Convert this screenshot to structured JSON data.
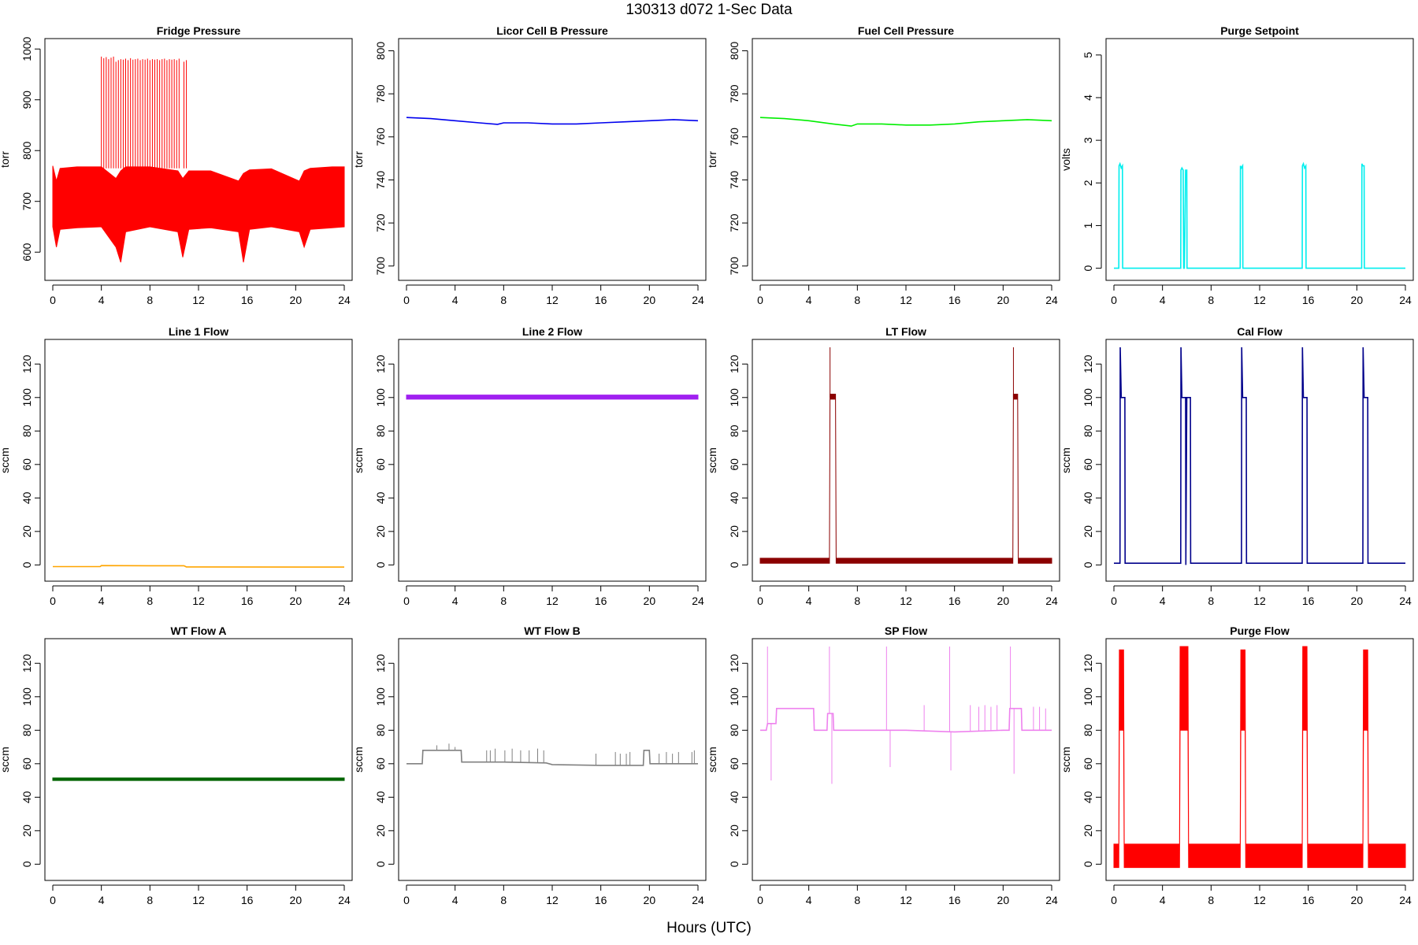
{
  "figure": {
    "title": "130313    d072    1-Sec Data",
    "xlabel": "Hours (UTC)"
  },
  "chart_data": [
    {
      "type": "line",
      "title": "Fridge Pressure",
      "ylabel": "torr",
      "color": "#ff0000",
      "xlim": [
        0,
        24
      ],
      "xticks": [
        0,
        4,
        8,
        12,
        16,
        20,
        24
      ],
      "ylim": [
        560,
        1005
      ],
      "yticks": [
        600,
        700,
        800,
        900,
        1000
      ],
      "series": [
        {
          "band": {
            "x": [
              0,
              0.3,
              0.6,
              2,
              4,
              5.2,
              5.6,
              6,
              8,
              10.3,
              10.7,
              11.2,
              13,
              15.3,
              15.7,
              16.2,
              18,
              20.3,
              20.7,
              21.2,
              23,
              24
            ],
            "low": [
              650,
              610,
              645,
              648,
              650,
              610,
              580,
              640,
              650,
              640,
              590,
              645,
              648,
              640,
              580,
              645,
              650,
              640,
              610,
              645,
              648,
              650
            ],
            "high": [
              770,
              740,
              765,
              768,
              768,
              745,
              760,
              768,
              768,
              760,
              745,
              760,
              760,
              740,
              755,
              762,
              764,
              740,
              760,
              765,
              768,
              768
            ]
          },
          "spikes": {
            "x": [
              4.0,
              4.2,
              4.4,
              4.6,
              4.8,
              5.0,
              5.2,
              5.4,
              5.6,
              5.8,
              6.0,
              6.2,
              6.4,
              6.6,
              6.8,
              7.0,
              7.2,
              7.4,
              7.6,
              7.8,
              8.0,
              8.2,
              8.4,
              8.6,
              8.8,
              9.0,
              9.2,
              9.4,
              9.6,
              9.8,
              10.0,
              10.2,
              10.4,
              10.8,
              11.0
            ],
            "top": [
              985,
              982,
              984,
              980,
              983,
              985,
              975,
              978,
              980,
              979,
              981,
              978,
              982,
              979,
              980,
              981,
              978,
              980,
              979,
              981,
              978,
              980,
              979,
              980,
              978,
              980,
              981,
              978,
              980,
              979,
              980,
              978,
              981,
              975,
              978
            ],
            "base": 765
          }
        }
      ]
    },
    {
      "type": "line",
      "title": "Licor Cell B Pressure",
      "ylabel": "torr",
      "color": "#0000ee",
      "xlim": [
        0,
        24
      ],
      "xticks": [
        0,
        4,
        8,
        12,
        16,
        20,
        24
      ],
      "ylim": [
        697,
        802
      ],
      "yticks": [
        700,
        720,
        740,
        760,
        780,
        800
      ],
      "series": [
        {
          "x": [
            0,
            2,
            4,
            6,
            7.5,
            8,
            10,
            12,
            14,
            16,
            18,
            20,
            22,
            24
          ],
          "y": [
            769,
            768.5,
            767.5,
            766.5,
            765.8,
            766.5,
            766.5,
            766,
            766,
            766.5,
            767,
            767.5,
            768,
            767.5
          ]
        }
      ]
    },
    {
      "type": "line",
      "title": "Fuel Cell Pressure",
      "ylabel": "torr",
      "color": "#00ee00",
      "xlim": [
        0,
        24
      ],
      "xticks": [
        0,
        4,
        8,
        12,
        16,
        20,
        24
      ],
      "ylim": [
        697,
        802
      ],
      "yticks": [
        700,
        720,
        740,
        760,
        780,
        800
      ],
      "series": [
        {
          "x": [
            0,
            2,
            4,
            6,
            7.5,
            8,
            10,
            12,
            14,
            16,
            18,
            20,
            22,
            24
          ],
          "y": [
            769,
            768.5,
            767.5,
            766,
            765,
            766,
            766,
            765.5,
            765.5,
            766,
            767,
            767.5,
            768,
            767.5
          ]
        }
      ]
    },
    {
      "type": "line",
      "title": "Purge Setpoint",
      "ylabel": "volts",
      "color": "#00eeee",
      "xlim": [
        0,
        24
      ],
      "xticks": [
        0,
        4,
        8,
        12,
        16,
        20,
        24
      ],
      "ylim": [
        -0.1,
        5.2
      ],
      "yticks": [
        0,
        1,
        2,
        3,
        4,
        5
      ],
      "series": [
        {
          "x": [
            0,
            0.4,
            0.42,
            0.5,
            0.6,
            0.7,
            0.72,
            5.5,
            5.52,
            5.6,
            5.7,
            5.75,
            5.8,
            5.9,
            6.0,
            6.02,
            10.4,
            10.42,
            10.5,
            10.6,
            10.62,
            15.5,
            15.52,
            15.6,
            15.7,
            15.8,
            15.82,
            20.4,
            20.42,
            20.5,
            20.6,
            20.62,
            24
          ],
          "y": [
            0,
            0,
            2.4,
            2.45,
            2.35,
            2.4,
            0,
            0,
            2.3,
            2.35,
            2.3,
            0,
            0,
            2.3,
            2.3,
            0,
            0,
            2.4,
            2.35,
            2.4,
            0,
            0,
            2.4,
            2.45,
            2.35,
            2.4,
            0,
            0,
            2.45,
            2.4,
            2.4,
            0,
            0
          ]
        }
      ]
    },
    {
      "type": "line",
      "title": "Line 1 Flow",
      "ylabel": "sccm",
      "color": "#ffa500",
      "xlim": [
        0,
        24
      ],
      "xticks": [
        0,
        4,
        8,
        12,
        16,
        20,
        24
      ],
      "ylim": [
        -5,
        130
      ],
      "yticks": [
        0,
        20,
        40,
        60,
        80,
        100,
        120
      ],
      "series": [
        {
          "x": [
            0,
            3.9,
            4.0,
            8,
            10.8,
            11.0,
            24
          ],
          "y": [
            -1,
            -1,
            -0.4,
            -0.5,
            -0.5,
            -1.2,
            -1.3
          ]
        }
      ]
    },
    {
      "type": "line",
      "title": "Line 2 Flow",
      "ylabel": "sccm",
      "color": "#a020f0",
      "xlim": [
        0,
        24
      ],
      "xticks": [
        0,
        4,
        8,
        12,
        16,
        20,
        24
      ],
      "ylim": [
        -5,
        130
      ],
      "yticks": [
        0,
        20,
        40,
        60,
        80,
        100,
        120
      ],
      "series": [
        {
          "band": {
            "x": [
              0,
              24
            ],
            "low": [
              99,
              99
            ],
            "high": [
              101.5,
              101.5
            ]
          }
        }
      ]
    },
    {
      "type": "line",
      "title": "LT Flow",
      "ylabel": "sccm",
      "color": "#8b0000",
      "xlim": [
        0,
        24
      ],
      "xticks": [
        0,
        4,
        8,
        12,
        16,
        20,
        24
      ],
      "ylim": [
        -5,
        130
      ],
      "yticks": [
        0,
        20,
        40,
        60,
        80,
        100,
        120
      ],
      "series": [
        {
          "band": {
            "x": [
              0,
              5.7,
              5.75,
              6.2,
              6.25,
              20.8,
              20.85,
              21.2,
              21.25,
              24
            ],
            "low": [
              1,
              1,
              99,
              99,
              1,
              1,
              99,
              99,
              1,
              1
            ],
            "high": [
              4,
              4,
              102,
              102,
              4,
              4,
              102,
              102,
              4,
              4
            ]
          },
          "spikes": {
            "x": [
              5.75,
              20.85
            ],
            "top": [
              130,
              130
            ],
            "base": 100
          }
        }
      ]
    },
    {
      "type": "line",
      "title": "Cal Flow",
      "ylabel": "sccm",
      "color": "#00008b",
      "xlim": [
        0,
        24
      ],
      "xticks": [
        0,
        4,
        8,
        12,
        16,
        20,
        24
      ],
      "ylim": [
        -5,
        130
      ],
      "yticks": [
        0,
        20,
        40,
        60,
        80,
        100,
        120
      ],
      "series": [
        {
          "x": [
            0,
            0.5,
            0.52,
            0.6,
            0.65,
            0.9,
            0.92,
            5.5,
            5.52,
            5.6,
            5.65,
            5.9,
            5.92,
            6.0,
            6.05,
            6.3,
            6.32,
            10.5,
            10.52,
            10.6,
            10.65,
            10.9,
            10.92,
            15.5,
            15.52,
            15.6,
            15.65,
            15.9,
            15.92,
            20.5,
            20.52,
            20.6,
            20.65,
            20.9,
            20.92,
            24
          ],
          "y": [
            1,
            1,
            130,
            100,
            100,
            100,
            1,
            1,
            130,
            100,
            100,
            100,
            0,
            100,
            100,
            100,
            1,
            1,
            130,
            100,
            100,
            100,
            1,
            1,
            130,
            100,
            100,
            100,
            1,
            1,
            130,
            100,
            100,
            100,
            1,
            1
          ]
        }
      ]
    },
    {
      "type": "line",
      "title": "WT Flow A",
      "ylabel": "sccm",
      "color": "#006400",
      "xlim": [
        0,
        24
      ],
      "xticks": [
        0,
        4,
        8,
        12,
        16,
        20,
        24
      ],
      "ylim": [
        -5,
        130
      ],
      "yticks": [
        0,
        20,
        40,
        60,
        80,
        100,
        120
      ],
      "series": [
        {
          "band": {
            "x": [
              0,
              24
            ],
            "low": [
              50,
              50
            ],
            "high": [
              51.5,
              51.5
            ]
          }
        }
      ]
    },
    {
      "type": "line",
      "title": "WT Flow B",
      "ylabel": "sccm",
      "color": "#808080",
      "xlim": [
        0,
        24
      ],
      "xticks": [
        0,
        4,
        8,
        12,
        16,
        20,
        24
      ],
      "ylim": [
        -5,
        130
      ],
      "yticks": [
        0,
        20,
        40,
        60,
        80,
        100,
        120
      ],
      "series": [
        {
          "x": [
            0,
            1.3,
            1.35,
            4.5,
            4.55,
            8,
            11.5,
            12,
            16,
            19.5,
            19.55,
            20,
            20.05,
            24
          ],
          "y": [
            60,
            60,
            68,
            68,
            61,
            61,
            60.5,
            59.5,
            59,
            59,
            68,
            68,
            60,
            60
          ],
          "spikes": {
            "x": [
              2.5,
              3.5,
              4.0,
              6.6,
              6.9,
              7.3,
              8.1,
              8.7,
              9.4,
              10.1,
              10.8,
              11.3,
              15.6,
              17.2,
              17.6,
              18.1,
              18.4,
              20.8,
              21.4,
              21.9,
              22.4,
              23.5,
              23.7
            ],
            "top": [
              71,
              72,
              70,
              68,
              68,
              69,
              68,
              69,
              68,
              68,
              69,
              68,
              66,
              67,
              66,
              66,
              67,
              66,
              67,
              66,
              67,
              67,
              68
            ]
          }
        }
      ]
    },
    {
      "type": "line",
      "title": "SP Flow",
      "ylabel": "sccm",
      "color": "#ee82ee",
      "xlim": [
        0,
        24
      ],
      "xticks": [
        0,
        4,
        8,
        12,
        16,
        20,
        24
      ],
      "ylim": [
        -5,
        130
      ],
      "yticks": [
        0,
        20,
        40,
        60,
        80,
        100,
        120
      ],
      "series": [
        {
          "x": [
            0,
            0.5,
            0.6,
            1.3,
            1.35,
            4.4,
            4.45,
            5.5,
            5.55,
            6.0,
            6.05,
            8,
            12,
            16,
            20,
            20.5,
            20.55,
            21.5,
            21.55,
            24
          ],
          "y": [
            80,
            80,
            84,
            84,
            93,
            93,
            80,
            80,
            90,
            90,
            80,
            80,
            80,
            79,
            80,
            80,
            93,
            93,
            80,
            80
          ],
          "spikes": {
            "x": [
              0.6,
              0.9,
              5.7,
              5.9,
              10.4,
              10.7,
              15.6,
              15.7,
              20.6,
              20.9,
              13.5,
              17.3,
              18.0,
              18.5,
              19.0,
              19.5,
              22.5,
              23.0,
              23.5
            ],
            "top": [
              130,
              50,
              130,
              48,
              130,
              58,
              130,
              56,
              130,
              54,
              95,
              95,
              94,
              95,
              94,
              95,
              94,
              94,
              93
            ]
          }
        }
      ]
    },
    {
      "type": "line",
      "title": "Purge Flow",
      "ylabel": "sccm",
      "color": "#ff0000",
      "xlim": [
        0,
        24
      ],
      "xticks": [
        0,
        4,
        8,
        12,
        16,
        20,
        24
      ],
      "ylim": [
        -5,
        130
      ],
      "yticks": [
        0,
        20,
        40,
        60,
        80,
        100,
        120
      ],
      "series": [
        {
          "band": {
            "x": [
              0,
              0.4,
              0.45,
              0.8,
              0.85,
              5.4,
              5.45,
              6.1,
              6.15,
              10.4,
              10.45,
              10.8,
              10.85,
              15.5,
              15.55,
              15.9,
              15.95,
              20.5,
              20.55,
              20.9,
              20.95,
              24
            ],
            "low": [
              -2,
              -2,
              80,
              80,
              -2,
              -2,
              80,
              80,
              -2,
              -2,
              80,
              80,
              -2,
              -2,
              80,
              80,
              -2,
              -2,
              80,
              80,
              -2,
              -2
            ],
            "high": [
              12,
              12,
              128,
              128,
              12,
              12,
              130,
              130,
              12,
              12,
              128,
              128,
              12,
              12,
              130,
              130,
              12,
              12,
              128,
              128,
              12,
              12
            ]
          }
        }
      ]
    }
  ]
}
